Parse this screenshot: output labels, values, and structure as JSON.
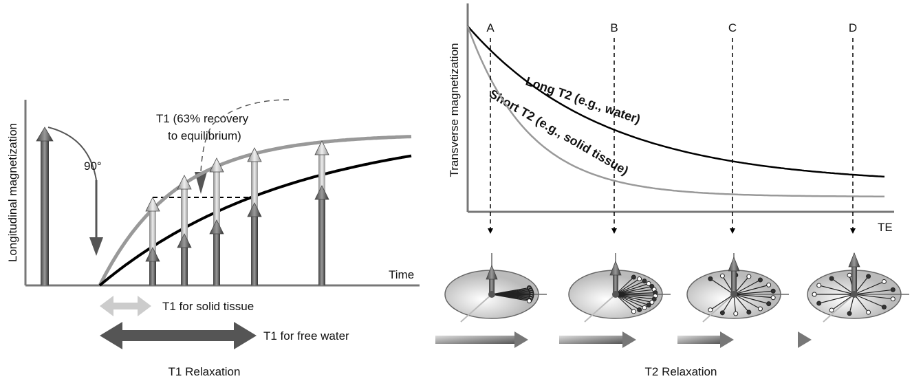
{
  "t1": {
    "y_axis_label": "Longitudinal magnetization",
    "flip_label": "90°",
    "t1_note_line1": "T1 (63% recovery",
    "t1_note_line2": "to equilibrium)",
    "x_axis_label": "Time",
    "solid_label": "T1 for solid tissue",
    "water_label": "T1 for free water",
    "caption": "T1 Relaxation"
  },
  "t2": {
    "y_axis_label": "Transverse magnetization",
    "points": [
      "A",
      "B",
      "C",
      "D"
    ],
    "long_label": "Long T2 (e.g., water)",
    "short_label": "Short T2 (e.g., solid tissue)",
    "x_axis_label": "TE",
    "caption": "T2 Relaxation"
  }
}
